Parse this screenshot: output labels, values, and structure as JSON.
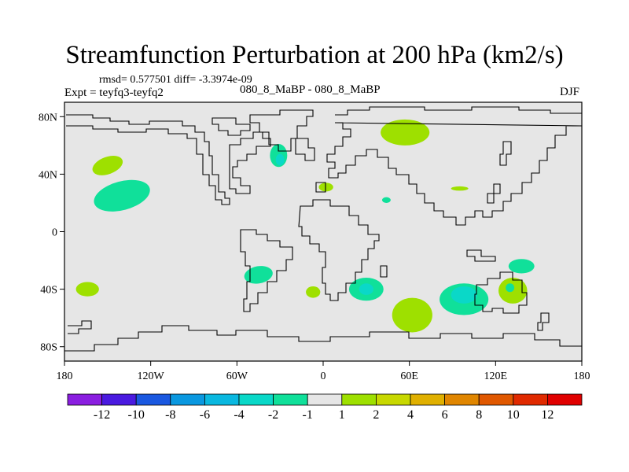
{
  "chart_data": {
    "type": "contour-map",
    "title": "Streamfunction Perturbation at 200 hPa (km2/s)",
    "stats_text": "rmsd= 0.577501 diff= -3.3974e-09",
    "experiment_label": "Expt = teyfq3-teyfq2",
    "subtitle": "080_8_MaBP - 080_8_MaBP",
    "season": "DJF",
    "lon_range": [
      -180,
      180
    ],
    "lat_range": [
      -90,
      90
    ],
    "x_ticks": [
      {
        "value": -180,
        "label": "180"
      },
      {
        "value": -120,
        "label": "120W"
      },
      {
        "value": -60,
        "label": "60W"
      },
      {
        "value": 0,
        "label": "0"
      },
      {
        "value": 60,
        "label": "60E"
      },
      {
        "value": 120,
        "label": "120E"
      },
      {
        "value": 180,
        "label": "180"
      }
    ],
    "y_ticks": [
      {
        "value": 80,
        "label": "80N"
      },
      {
        "value": 40,
        "label": "40N"
      },
      {
        "value": 0,
        "label": "0"
      },
      {
        "value": -40,
        "label": "40S"
      },
      {
        "value": -80,
        "label": "80S"
      }
    ],
    "colorbar": {
      "labels": [
        "-12",
        "-10",
        "-8",
        "-6",
        "-4",
        "-2",
        "-1",
        "1",
        "2",
        "4",
        "6",
        "8",
        "10",
        "12"
      ],
      "colors": [
        "#8a1ee0",
        "#4a1ae0",
        "#1a58e0",
        "#0a98e0",
        "#0ab8e0",
        "#0ad8c8",
        "#10e09a",
        "#e6e6e6",
        "#9ee000",
        "#c8d800",
        "#e0b000",
        "#e08600",
        "#e05800",
        "#e02a00",
        "#e00000"
      ]
    },
    "anomalies": [
      {
        "name": "north-pacific-pos",
        "lon": -150,
        "lat": 46,
        "rlon": 11,
        "rlat": 6,
        "rot": -20,
        "level": 2
      },
      {
        "name": "subtropical-pacific-neg",
        "lon": -140,
        "lat": 25,
        "rlon": 20,
        "rlat": 10,
        "rot": -15,
        "level": -1
      },
      {
        "name": "north-atlantic-neg",
        "lon": -31,
        "lat": 53,
        "rlon": 6,
        "rlat": 8,
        "rot": 0,
        "level": -1
      },
      {
        "name": "north-atlantic-neg-core",
        "lon": -30,
        "lat": 50,
        "rlon": 3,
        "rlat": 4,
        "rot": 0,
        "level": -2
      },
      {
        "name": "arctic-siberia-pos",
        "lon": 57,
        "lat": 69,
        "rlon": 17,
        "rlat": 9,
        "rot": 0,
        "level": 2
      },
      {
        "name": "mediterranean-pos",
        "lon": 2,
        "lat": 31,
        "rlon": 5,
        "rlat": 3,
        "rot": 0,
        "level": 2
      },
      {
        "name": "arabia-neg",
        "lon": 44,
        "lat": 22,
        "rlon": 3,
        "rlat": 2,
        "rot": 0,
        "level": -1
      },
      {
        "name": "east-asia-pos",
        "lon": 95,
        "lat": 30,
        "rlon": 6,
        "rlat": 1.5,
        "rot": 0,
        "level": 2
      },
      {
        "name": "south-pacific-pos",
        "lon": -164,
        "lat": -40,
        "rlon": 8,
        "rlat": 5,
        "rot": 0,
        "level": 2
      },
      {
        "name": "south-america-neg",
        "lon": -45,
        "lat": -30,
        "rlon": 10,
        "rlat": 6,
        "rot": -10,
        "level": -1
      },
      {
        "name": "south-atlantic-pos",
        "lon": -7,
        "lat": -42,
        "rlon": 5,
        "rlat": 4,
        "rot": 0,
        "level": 2
      },
      {
        "name": "south-africa-neg",
        "lon": 30,
        "lat": -40,
        "rlon": 12,
        "rlat": 8,
        "rot": 0,
        "level": -1
      },
      {
        "name": "south-africa-neg-core",
        "lon": 30,
        "lat": -40,
        "rlon": 5,
        "rlat": 4,
        "rot": 0,
        "level": -2
      },
      {
        "name": "southern-ocean-pos",
        "lon": 62,
        "lat": -58,
        "rlon": 14,
        "rlat": 12,
        "rot": 0,
        "level": 2
      },
      {
        "name": "indian-ocean-neg",
        "lon": 98,
        "lat": -47,
        "rlon": 17,
        "rlat": 11,
        "rot": 0,
        "level": -1
      },
      {
        "name": "indian-ocean-neg-core",
        "lon": 98,
        "lat": -44,
        "rlon": 9,
        "rlat": 6,
        "rot": 0,
        "level": -2
      },
      {
        "name": "australia-pos",
        "lon": 132,
        "lat": -41,
        "rlon": 10,
        "rlat": 9,
        "rot": 0,
        "level": 2
      },
      {
        "name": "australia-neg-core",
        "lon": 130,
        "lat": -39,
        "rlon": 3,
        "rlat": 3,
        "rot": 0,
        "level": -1
      },
      {
        "name": "tasman-neg",
        "lon": 138,
        "lat": -24,
        "rlon": 9,
        "rlat": 5,
        "rot": 0,
        "level": -1
      }
    ]
  }
}
